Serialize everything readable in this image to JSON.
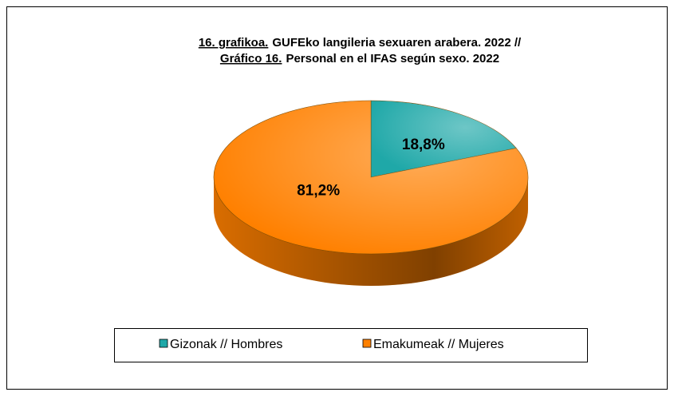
{
  "chart_data": {
    "type": "pie",
    "title": [
      {
        "label": "16. grafikoa.",
        "text": "GUFEko langileria sexuaren arabera. 2022 //"
      },
      {
        "label": "Gráfico 16.",
        "text": "Personal en el IFAS según sexo. 2022"
      }
    ],
    "categories": [
      "Gizonak // Hombres",
      "Emakumeak // Mujeres"
    ],
    "values": [
      18.8,
      81.2
    ],
    "value_labels": [
      "18,8%",
      "81,2%"
    ],
    "colors": [
      "#1fa8a8",
      "#ff8000"
    ],
    "legend": "bottom"
  }
}
